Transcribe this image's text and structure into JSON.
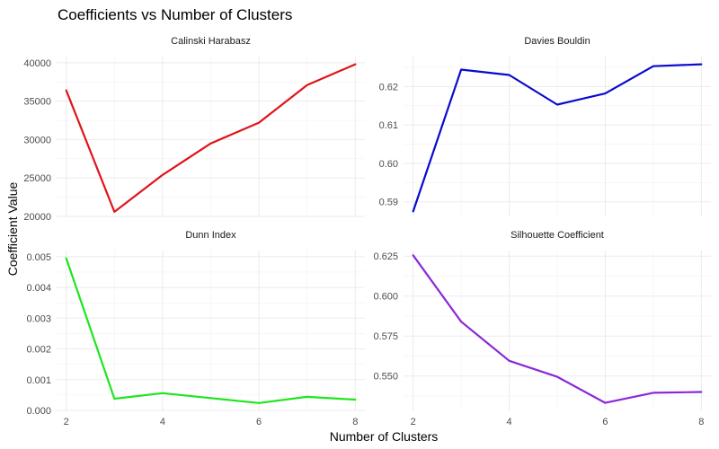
{
  "chart_data": {
    "type": "line",
    "title": "Coefficients vs Number of Clusters",
    "xlabel": "Number of Clusters",
    "ylabel": "Coefficient Value",
    "grid": true,
    "facets": [
      {
        "name": "Calinski Harabasz",
        "color": "#e0141a",
        "x": [
          2,
          3,
          4,
          5,
          6,
          7,
          8
        ],
        "y": [
          36400,
          20600,
          25400,
          29500,
          32200,
          37100,
          39800
        ],
        "xlim": [
          1.8,
          8.2
        ],
        "ylim": [
          20000,
          40800
        ],
        "yticks": [
          20000,
          25000,
          30000,
          35000,
          40000
        ],
        "ytick_labels": [
          "20000",
          "25000",
          "30000",
          "35000",
          "40000"
        ],
        "xticks": [
          2,
          4,
          6,
          8
        ],
        "xtick_labels": []
      },
      {
        "name": "Davies Bouldin",
        "color": "#0a0ad0",
        "x": [
          2,
          3,
          4,
          5,
          6,
          7,
          8
        ],
        "y": [
          0.5875,
          0.6244,
          0.623,
          0.6153,
          0.6182,
          0.6253,
          0.6258
        ],
        "xlim": [
          1.8,
          8.2
        ],
        "ylim": [
          0.5862,
          0.6278
        ],
        "yticks": [
          0.59,
          0.6,
          0.61,
          0.62
        ],
        "ytick_labels": [
          "0.59",
          "0.60",
          "0.61",
          "0.62"
        ],
        "xticks": [
          2,
          4,
          6,
          8
        ],
        "xtick_labels": []
      },
      {
        "name": "Dunn Index",
        "color": "#1ee61e",
        "x": [
          2,
          3,
          4,
          5,
          6,
          7,
          8
        ],
        "y": [
          0.00495,
          0.00038,
          0.00056,
          0.0004,
          0.00024,
          0.00044,
          0.00035
        ],
        "xlim": [
          1.8,
          8.2
        ],
        "ylim": [
          0,
          0.0052
        ],
        "yticks": [
          0,
          0.001,
          0.002,
          0.003,
          0.004,
          0.005
        ],
        "ytick_labels": [
          "0.000",
          "0.001",
          "0.002",
          "0.003",
          "0.004",
          "0.005"
        ],
        "xticks": [
          2,
          4,
          6,
          8
        ],
        "xtick_labels": [
          "2",
          "4",
          "6",
          "8"
        ]
      },
      {
        "name": "Silhouette Coefficient",
        "color": "#8a28d8",
        "x": [
          2,
          3,
          4,
          5,
          6,
          7,
          8
        ],
        "y": [
          0.6255,
          0.584,
          0.5595,
          0.5495,
          0.5332,
          0.5395,
          0.54
        ],
        "xlim": [
          1.8,
          8.2
        ],
        "ylim": [
          0.5285,
          0.6285
        ],
        "yticks": [
          0.55,
          0.575,
          0.6,
          0.625
        ],
        "ytick_labels": [
          "0.550",
          "0.575",
          "0.600",
          "0.625"
        ],
        "xticks": [
          2,
          4,
          6,
          8
        ],
        "xtick_labels": [
          "2",
          "4",
          "6",
          "8"
        ]
      }
    ]
  }
}
